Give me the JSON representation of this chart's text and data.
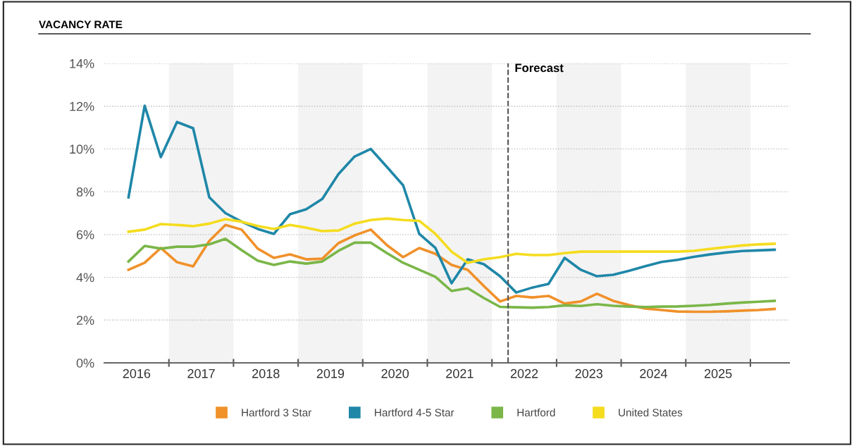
{
  "chart_data": {
    "type": "line",
    "title": "VACANCY RATE",
    "x": [
      2016.375,
      2016.625,
      2016.875,
      2017.125,
      2017.375,
      2017.625,
      2017.875,
      2018.125,
      2018.375,
      2018.625,
      2018.875,
      2019.125,
      2019.375,
      2019.625,
      2019.875,
      2020.125,
      2020.375,
      2020.625,
      2020.875,
      2021.125,
      2021.375,
      2021.625,
      2021.875,
      2022.125,
      2022.375,
      2022.625,
      2022.875,
      2023.125,
      2023.375,
      2023.625,
      2023.875,
      2024.125,
      2024.375,
      2024.625,
      2024.875,
      2025.125,
      2025.375,
      2025.625,
      2025.875,
      2026.125,
      2026.375
    ],
    "series": [
      {
        "name": "Hartford 3 Star",
        "color": "#f0912a",
        "values": [
          4.35,
          4.68,
          5.37,
          4.71,
          4.51,
          5.7,
          6.45,
          6.23,
          5.34,
          4.91,
          5.07,
          4.84,
          4.87,
          5.6,
          5.96,
          6.23,
          5.5,
          4.94,
          5.37,
          5.1,
          4.58,
          4.35,
          3.59,
          2.87,
          3.13,
          3.06,
          3.13,
          2.77,
          2.87,
          3.23,
          2.9,
          2.7,
          2.54,
          2.47,
          2.4,
          2.39,
          2.39,
          2.41,
          2.44,
          2.47,
          2.52
        ]
      },
      {
        "name": "Hartford 4-5 Star",
        "color": "#1f87a8",
        "values": [
          7.74,
          12.02,
          9.62,
          11.26,
          10.97,
          7.74,
          7.0,
          6.6,
          6.26,
          6.03,
          6.95,
          7.18,
          7.67,
          8.83,
          9.65,
          10.0,
          9.16,
          8.3,
          6.03,
          5.37,
          3.72,
          4.84,
          4.61,
          4.05,
          3.29,
          3.52,
          3.69,
          4.91,
          4.35,
          4.05,
          4.12,
          4.31,
          4.52,
          4.72,
          4.82,
          4.96,
          5.07,
          5.16,
          5.23,
          5.26,
          5.29
        ]
      },
      {
        "name": "Hartford",
        "color": "#7ab648",
        "values": [
          4.74,
          5.47,
          5.34,
          5.43,
          5.43,
          5.54,
          5.8,
          5.27,
          4.78,
          4.58,
          4.74,
          4.64,
          4.74,
          5.24,
          5.62,
          5.62,
          5.13,
          4.68,
          4.35,
          4.02,
          3.36,
          3.49,
          3.03,
          2.62,
          2.6,
          2.58,
          2.61,
          2.69,
          2.66,
          2.74,
          2.67,
          2.63,
          2.61,
          2.63,
          2.64,
          2.67,
          2.71,
          2.77,
          2.82,
          2.86,
          2.9
        ]
      },
      {
        "name": "United States",
        "color": "#f5dc1e",
        "values": [
          6.13,
          6.23,
          6.49,
          6.45,
          6.39,
          6.51,
          6.72,
          6.6,
          6.4,
          6.26,
          6.45,
          6.32,
          6.16,
          6.19,
          6.51,
          6.68,
          6.75,
          6.68,
          6.64,
          6.03,
          5.2,
          4.68,
          4.84,
          4.94,
          5.1,
          5.04,
          5.04,
          5.13,
          5.2,
          5.2,
          5.2,
          5.2,
          5.2,
          5.2,
          5.2,
          5.24,
          5.33,
          5.41,
          5.49,
          5.54,
          5.57
        ]
      }
    ],
    "xlim": [
      2016,
      2026.6
    ],
    "xticks": [
      {
        "value": 2016.5,
        "label": "2016"
      },
      {
        "value": 2017,
        "label": null
      },
      {
        "value": 2017.5,
        "label": "2017"
      },
      {
        "value": 2018,
        "label": null
      },
      {
        "value": 2018.5,
        "label": "2018"
      },
      {
        "value": 2019,
        "label": null
      },
      {
        "value": 2019.5,
        "label": "2019"
      },
      {
        "value": 2020,
        "label": null
      },
      {
        "value": 2020.5,
        "label": "2020"
      },
      {
        "value": 2021,
        "label": null
      },
      {
        "value": 2021.5,
        "label": "2021"
      },
      {
        "value": 2022,
        "label": null
      },
      {
        "value": 2022.5,
        "label": "2022"
      },
      {
        "value": 2023,
        "label": null
      },
      {
        "value": 2023.5,
        "label": "2023"
      },
      {
        "value": 2024,
        "label": null
      },
      {
        "value": 2024.5,
        "label": "2024"
      },
      {
        "value": 2025,
        "label": null
      },
      {
        "value": 2025.5,
        "label": "2025"
      },
      {
        "value": 2026,
        "label": null
      }
    ],
    "ylim": [
      0,
      14
    ],
    "yticks": [
      {
        "value": 0,
        "label": "0%"
      },
      {
        "value": 2,
        "label": "2%"
      },
      {
        "value": 4,
        "label": "4%"
      },
      {
        "value": 6,
        "label": "6%"
      },
      {
        "value": 8,
        "label": "8%"
      },
      {
        "value": 10,
        "label": "10%"
      },
      {
        "value": 12,
        "label": "12%"
      },
      {
        "value": 14,
        "label": "14%"
      }
    ],
    "grid": "y",
    "legend": "bottom",
    "marker": "none",
    "line_style": "solid",
    "ref_lines": [
      {
        "axis": "x",
        "value": 2022.25,
        "label": "Forecast",
        "color": "#555555",
        "line_style": "dashed"
      }
    ],
    "bands": [
      {
        "axis": "x",
        "from": 2017,
        "to": 2018,
        "color": "#f3f3f3"
      },
      {
        "axis": "x",
        "from": 2019,
        "to": 2020,
        "color": "#f3f3f3"
      },
      {
        "axis": "x",
        "from": 2021,
        "to": 2022,
        "color": "#f3f3f3"
      },
      {
        "axis": "x",
        "from": 2023,
        "to": 2024,
        "color": "#f3f3f3"
      },
      {
        "axis": "x",
        "from": 2025,
        "to": 2026,
        "color": "#f3f3f3"
      }
    ]
  }
}
